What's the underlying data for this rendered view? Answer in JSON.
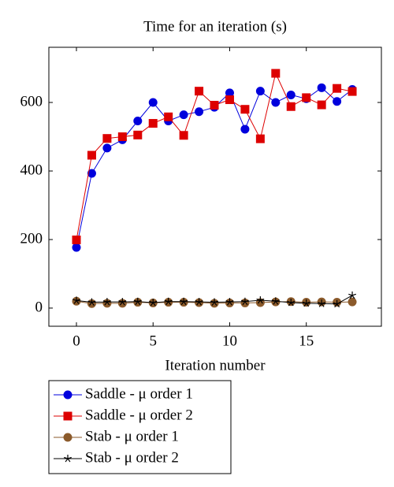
{
  "chart_data": {
    "type": "line",
    "title": "Time for an iteration (s)",
    "x_label": "Iteration number",
    "x": [
      0,
      1,
      2,
      3,
      4,
      5,
      6,
      7,
      8,
      9,
      10,
      11,
      12,
      13,
      14,
      15,
      16,
      17,
      18
    ],
    "series": [
      {
        "name": "Saddle - μ order 1",
        "color": "#0000dd",
        "marker": "circle",
        "values": [
          177,
          393,
          467,
          491,
          546,
          600,
          546,
          564,
          573,
          586,
          628,
          522,
          633,
          600,
          622,
          611,
          643,
          603,
          638
        ]
      },
      {
        "name": "Saddle - μ order 2",
        "color": "#dd0000",
        "marker": "square",
        "values": [
          199,
          446,
          495,
          500,
          505,
          539,
          558,
          504,
          633,
          592,
          608,
          580,
          494,
          685,
          588,
          614,
          593,
          641,
          632
        ]
      },
      {
        "name": "Stab - μ order 1",
        "color": "#8b5a2b",
        "marker": "circle",
        "values": [
          20,
          13,
          14,
          14,
          17,
          15,
          17,
          17,
          16,
          14,
          15,
          15,
          16,
          18,
          19,
          17,
          18,
          17,
          18
        ]
      },
      {
        "name": "Stab - μ order 2",
        "color": "#000000",
        "marker": "star",
        "values": [
          22,
          17,
          18,
          18,
          19,
          16,
          19,
          19,
          18,
          17,
          18,
          19,
          23,
          20,
          16,
          14,
          13,
          12,
          37
        ]
      }
    ],
    "xlim": [
      -1.8,
      19.9
    ],
    "xticks": [
      0,
      5,
      10,
      15
    ],
    "ylim": [
      -53,
      761
    ],
    "yticks": [
      0,
      200,
      400,
      600
    ],
    "legend": "below"
  }
}
